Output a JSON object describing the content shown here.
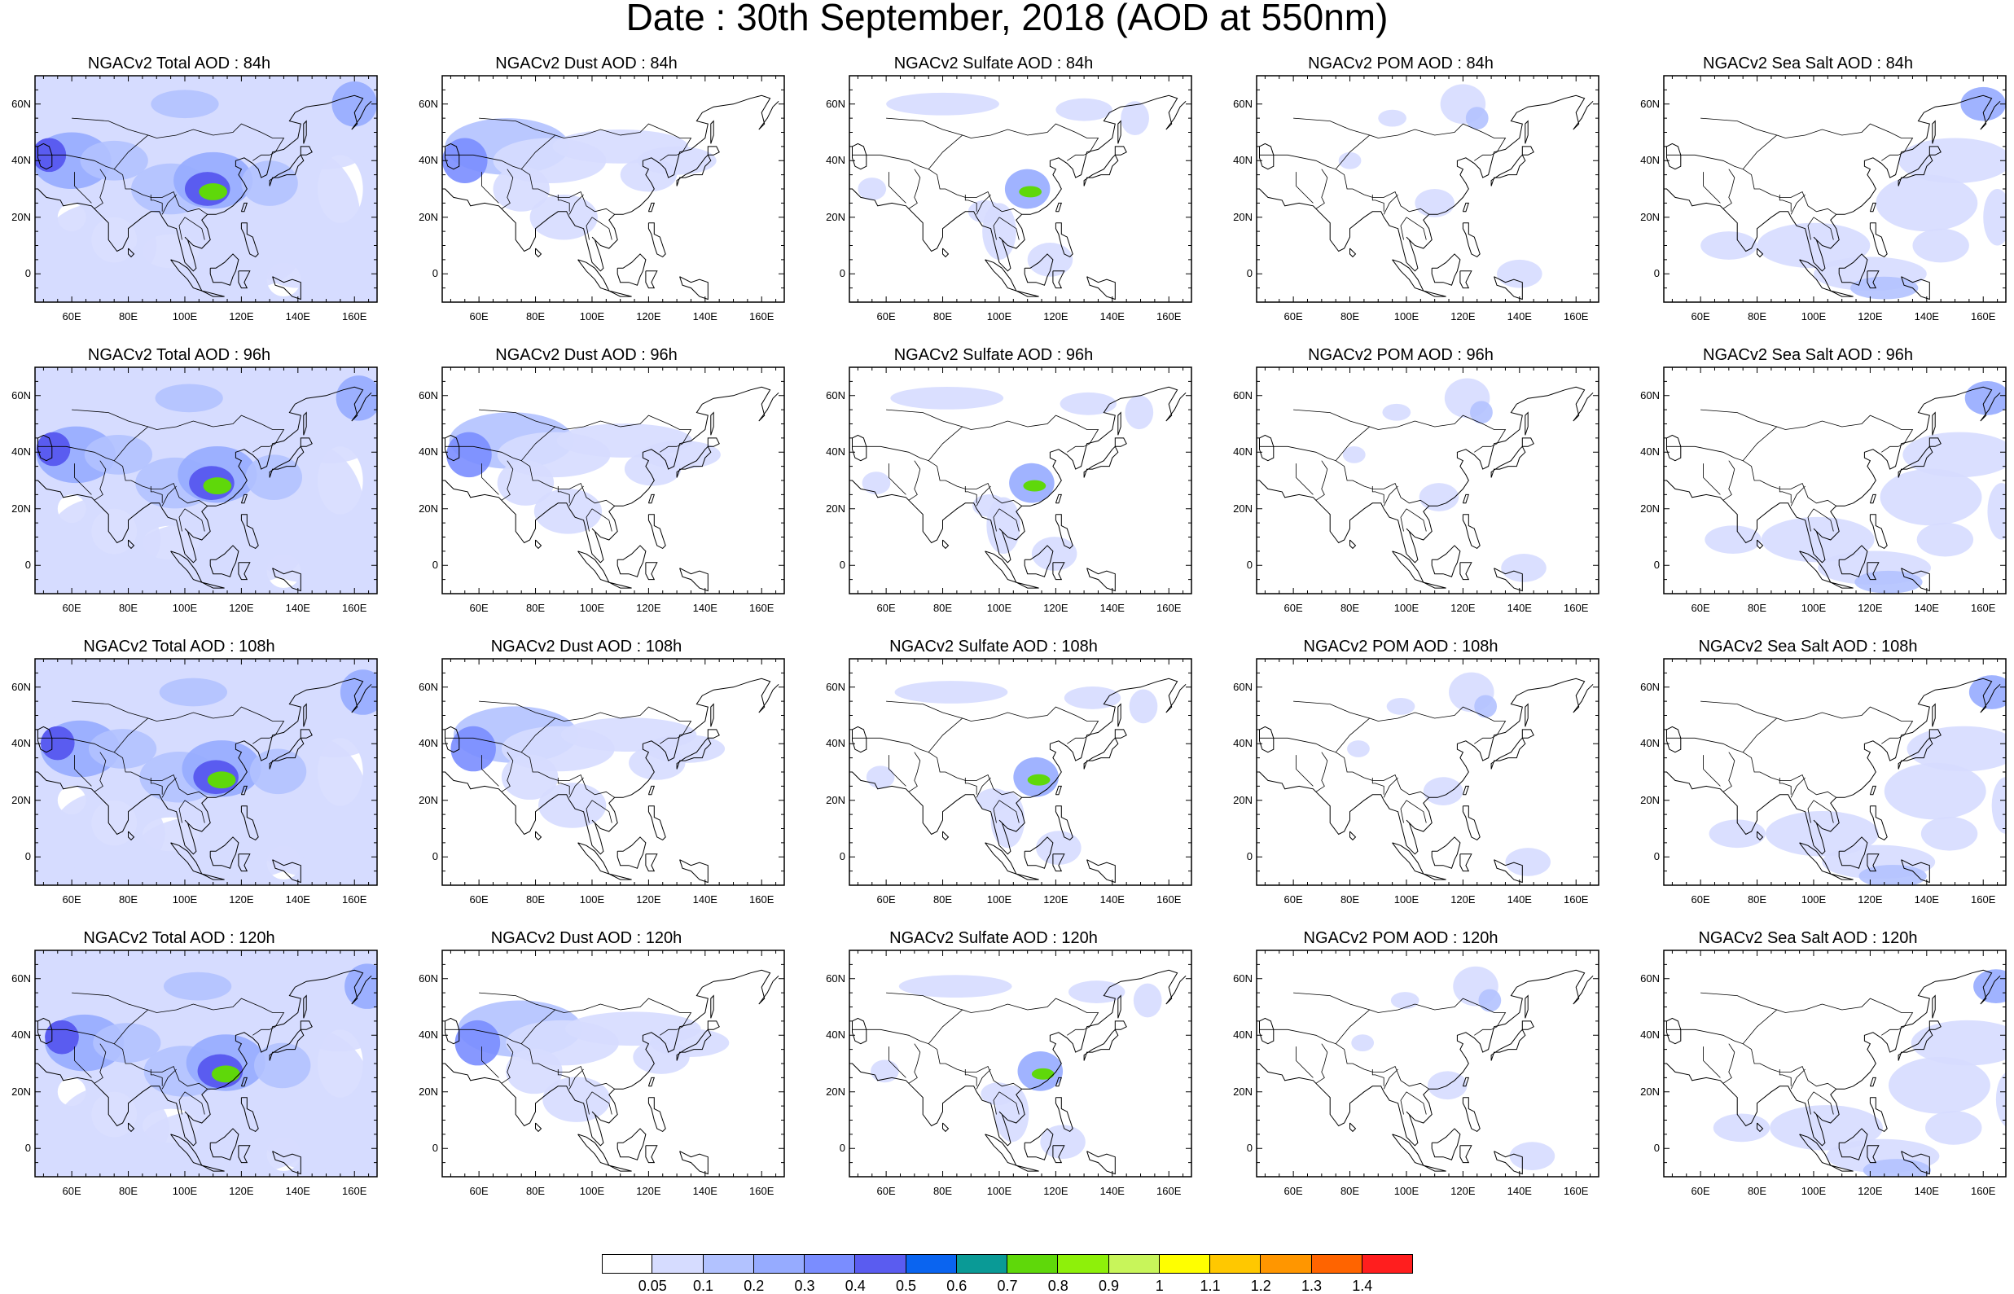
{
  "title": "Date : 30th September, 2018 (AOD at 550nm)",
  "panels": [
    {
      "title": "NGACv2 Total AOD : 84h",
      "kind": "total"
    },
    {
      "title": "NGACv2 Dust AOD : 84h",
      "kind": "dust"
    },
    {
      "title": "NGACv2 Sulfate AOD : 84h",
      "kind": "sulfate"
    },
    {
      "title": "NGACv2 POM AOD : 84h",
      "kind": "pom"
    },
    {
      "title": "NGACv2 Sea Salt AOD : 84h",
      "kind": "seasalt"
    },
    {
      "title": "NGACv2 Total AOD : 96h",
      "kind": "total"
    },
    {
      "title": "NGACv2 Dust AOD : 96h",
      "kind": "dust"
    },
    {
      "title": "NGACv2 Sulfate AOD : 96h",
      "kind": "sulfate"
    },
    {
      "title": "NGACv2 POM AOD : 96h",
      "kind": "pom"
    },
    {
      "title": "NGACv2 Sea Salt AOD : 96h",
      "kind": "seasalt"
    },
    {
      "title": "NGACv2 Total AOD : 108h",
      "kind": "total"
    },
    {
      "title": "NGACv2 Dust AOD : 108h",
      "kind": "dust"
    },
    {
      "title": "NGACv2 Sulfate AOD : 108h",
      "kind": "sulfate"
    },
    {
      "title": "NGACv2 POM AOD : 108h",
      "kind": "pom"
    },
    {
      "title": "NGACv2 Sea Salt AOD : 108h",
      "kind": "seasalt"
    },
    {
      "title": "NGACv2 Total AOD : 120h",
      "kind": "total"
    },
    {
      "title": "NGACv2 Dust AOD : 120h",
      "kind": "dust"
    },
    {
      "title": "NGACv2 Sulfate AOD : 120h",
      "kind": "sulfate"
    },
    {
      "title": "NGACv2 POM AOD : 120h",
      "kind": "pom"
    },
    {
      "title": "NGACv2 Sea Salt  AOD : 120h",
      "kind": "seasalt"
    }
  ],
  "lat_ticks": [
    "60N",
    "40N",
    "20N",
    "0"
  ],
  "lon_ticks": [
    "60E",
    "80E",
    "100E",
    "120E",
    "140E",
    "160E"
  ],
  "colorbar": {
    "labels": [
      "0.05",
      "0.1",
      "0.2",
      "0.3",
      "0.4",
      "0.5",
      "0.6",
      "0.7",
      "0.8",
      "0.9",
      "1",
      "1.1",
      "1.2",
      "1.3",
      "1.4"
    ],
    "colors": [
      "#ffffff",
      "#d6dcff",
      "#b2c2ff",
      "#96abff",
      "#7a8dff",
      "#5a5cf0",
      "#0a64f0",
      "#0a9a96",
      "#5fd80a",
      "#8ef00a",
      "#c8f55a",
      "#ffff00",
      "#ffc800",
      "#ff9600",
      "#ff6400",
      "#ff1e1e"
    ]
  }
}
